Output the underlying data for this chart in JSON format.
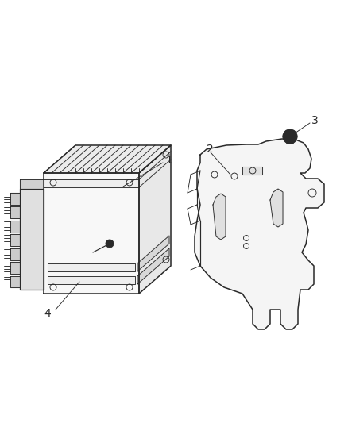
{
  "background_color": "#ffffff",
  "line_color": "#2a2a2a",
  "label_color": "#000000",
  "fig_width": 4.39,
  "fig_height": 5.33,
  "dpi": 100,
  "lw_main": 1.1,
  "lw_thin": 0.65,
  "lw_med": 0.85
}
